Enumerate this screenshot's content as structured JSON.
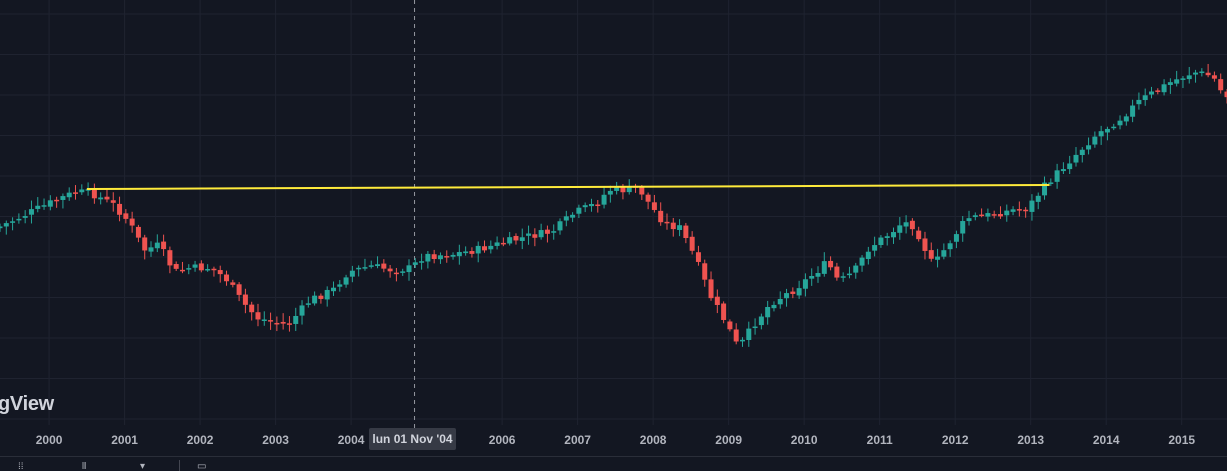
{
  "watermark": "gView",
  "crosshair_label": "lun 01 Nov '04",
  "colors": {
    "background": "#131722",
    "grid": "#1f2330",
    "up": "#26a69a",
    "down": "#ef5350",
    "resistance": "#ffeb3b",
    "axis_text": "#b2b5be",
    "crosshair": "#9598a1"
  },
  "toolbar": {
    "icons": [
      "range-icon",
      "compare-icon",
      "chart-type-icon",
      "calendar-icon"
    ]
  },
  "chart_data": {
    "type": "candlestick",
    "x_axis_labels": [
      "2000",
      "2001",
      "2002",
      "2003",
      "2004",
      "2006",
      "2007",
      "2008",
      "2009",
      "2010",
      "2011",
      "2012",
      "2013",
      "2014",
      "2015"
    ],
    "xlim": [
      1999.35,
      2015.6
    ],
    "ylim": [
      0,
      470
    ],
    "y_axis_visible": false,
    "grid": true,
    "crosshair_x": 2004.84,
    "resistance_line": {
      "from": [
        2000.5,
        189
      ],
      "to": [
        2013.25,
        185
      ]
    },
    "anchors": [
      [
        1999.35,
        228
      ],
      [
        1999.8,
        212
      ],
      [
        2000.2,
        198
      ],
      [
        2000.4,
        192
      ],
      [
        2000.6,
        193
      ],
      [
        2000.9,
        205
      ],
      [
        2001.1,
        222
      ],
      [
        2001.3,
        250
      ],
      [
        2001.5,
        245
      ],
      [
        2001.7,
        272
      ],
      [
        2001.9,
        268
      ],
      [
        2002.2,
        268
      ],
      [
        2002.4,
        280
      ],
      [
        2002.6,
        302
      ],
      [
        2002.8,
        318
      ],
      [
        2003.0,
        322
      ],
      [
        2003.2,
        325
      ],
      [
        2003.5,
        300
      ],
      [
        2003.8,
        290
      ],
      [
        2004.0,
        272
      ],
      [
        2004.3,
        266
      ],
      [
        2004.6,
        270
      ],
      [
        2004.84,
        268
      ],
      [
        2005.0,
        256
      ],
      [
        2005.4,
        254
      ],
      [
        2005.7,
        250
      ],
      [
        2006.0,
        244
      ],
      [
        2006.4,
        236
      ],
      [
        2006.7,
        232
      ],
      [
        2007.0,
        213
      ],
      [
        2007.3,
        203
      ],
      [
        2007.45,
        190
      ],
      [
        2007.7,
        190
      ],
      [
        2007.85,
        188
      ],
      [
        2008.0,
        205
      ],
      [
        2008.2,
        224
      ],
      [
        2008.4,
        228
      ],
      [
        2008.6,
        258
      ],
      [
        2008.8,
        296
      ],
      [
        2009.0,
        322
      ],
      [
        2009.17,
        348
      ],
      [
        2009.4,
        322
      ],
      [
        2009.6,
        303
      ],
      [
        2009.9,
        290
      ],
      [
        2010.2,
        272
      ],
      [
        2010.35,
        262
      ],
      [
        2010.5,
        282
      ],
      [
        2010.7,
        272
      ],
      [
        2010.9,
        248
      ],
      [
        2011.2,
        232
      ],
      [
        2011.35,
        222
      ],
      [
        2011.5,
        226
      ],
      [
        2011.65,
        250
      ],
      [
        2011.75,
        266
      ],
      [
        2011.95,
        244
      ],
      [
        2012.2,
        218
      ],
      [
        2012.5,
        215
      ],
      [
        2012.8,
        210
      ],
      [
        2013.0,
        208
      ],
      [
        2013.25,
        184
      ],
      [
        2013.5,
        165
      ],
      [
        2013.9,
        135
      ],
      [
        2014.2,
        120
      ],
      [
        2014.5,
        100
      ],
      [
        2014.9,
        82
      ],
      [
        2015.2,
        72
      ],
      [
        2015.45,
        76
      ],
      [
        2015.6,
        96
      ]
    ]
  }
}
